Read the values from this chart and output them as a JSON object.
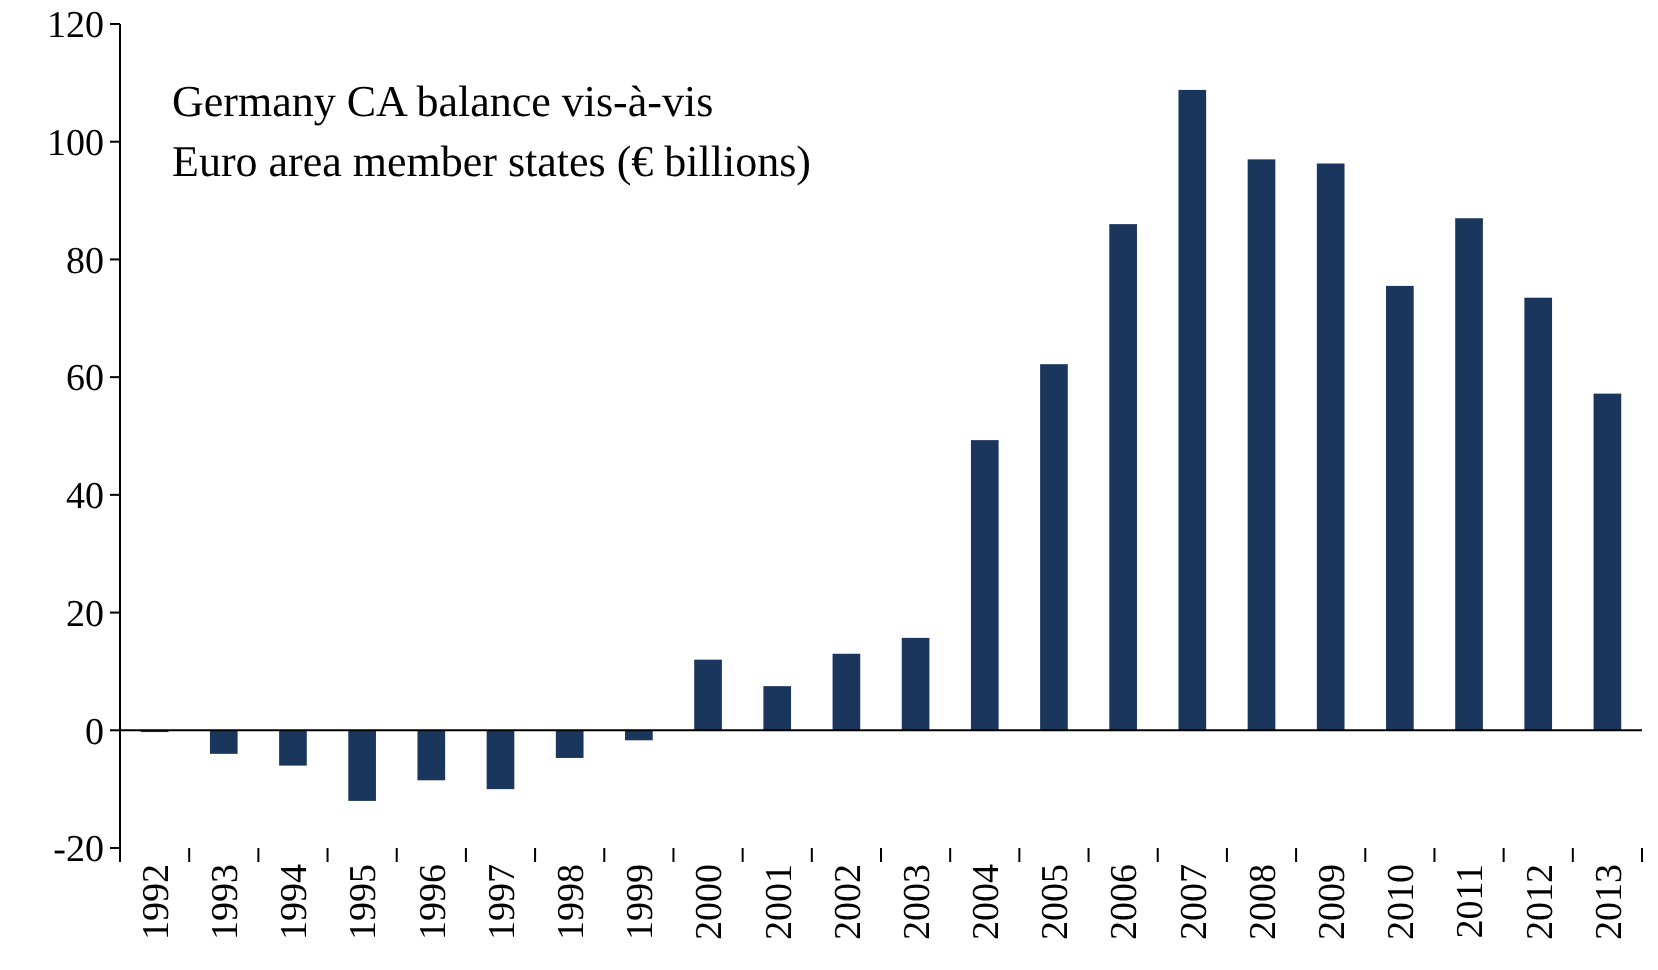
{
  "chart_data": {
    "type": "bar",
    "title": "Germany CA balance vis-à-vis\nEuro area member states (€ billions)",
    "categories": [
      "1992",
      "1993",
      "1994",
      "1995",
      "1996",
      "1997",
      "1998",
      "1999",
      "2000",
      "2001",
      "2002",
      "2003",
      "2004",
      "2005",
      "2006",
      "2007",
      "2008",
      "2009",
      "2010",
      "2011",
      "2012",
      "2013"
    ],
    "values": [
      -0.3,
      -4,
      -6,
      -12,
      -8.5,
      -10,
      -4.7,
      -1.7,
      12,
      7.5,
      13,
      15.7,
      49.3,
      62.2,
      86,
      108.8,
      97,
      96.3,
      75.5,
      87,
      73.5,
      57.2
    ],
    "color": "#1b365d",
    "ylim": [
      -20,
      120
    ],
    "yticks": [
      -20,
      0,
      20,
      40,
      60,
      80,
      100,
      120
    ]
  }
}
